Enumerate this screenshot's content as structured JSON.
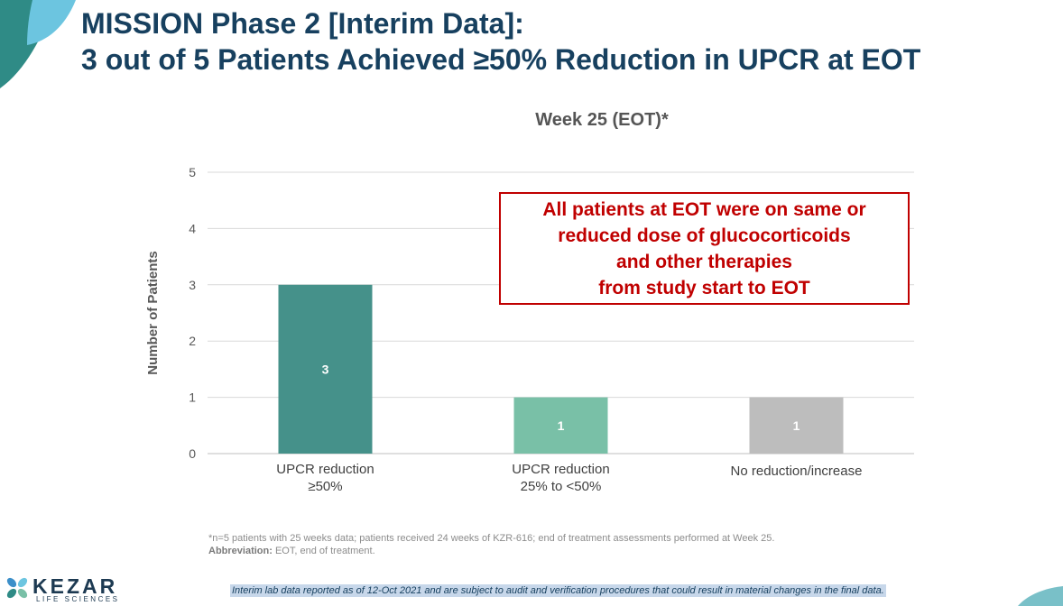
{
  "slide": {
    "title_line1": "MISSION Phase 2 [Interim Data]:",
    "title_line2": "3 out of 5 Patients Achieved ≥50% Reduction in UPCR at EOT"
  },
  "chart_data": {
    "type": "bar",
    "title": "Week 25 (EOT)*",
    "ylabel": "Number of Patients",
    "xlabel": "",
    "ylim": [
      0,
      5
    ],
    "yticks": [
      0,
      1,
      2,
      3,
      4,
      5
    ],
    "grid": true,
    "categories": [
      [
        "UPCR reduction",
        "≥50%"
      ],
      [
        "UPCR reduction",
        "25% to <50%"
      ],
      [
        "No reduction/increase"
      ]
    ],
    "values": [
      3,
      1,
      1
    ],
    "data_labels": [
      "3",
      "1",
      "1"
    ],
    "colors": [
      "#45918a",
      "#79c0a7",
      "#bdbdbd"
    ]
  },
  "callout": {
    "lines": [
      "All patients at EOT were on same or",
      "reduced dose of glucocorticoids",
      "and other therapies",
      "from study start to EOT"
    ],
    "color": "#c00000"
  },
  "footnote": {
    "line1": "*n=5 patients with 25 weeks data; patients received 24 weeks of KZR-616; end of treatment assessments performed at Week 25.",
    "abbr_label": "Abbreviation:",
    "abbr_text": " EOT, end of treatment."
  },
  "logo": {
    "name": "KEZAR",
    "tagline": "LIFE SCIENCES"
  },
  "disclaimer": "Interim lab data reported as of 12-Oct 2021 and are subject to audit and verification procedures that could result in material changes in the final data."
}
